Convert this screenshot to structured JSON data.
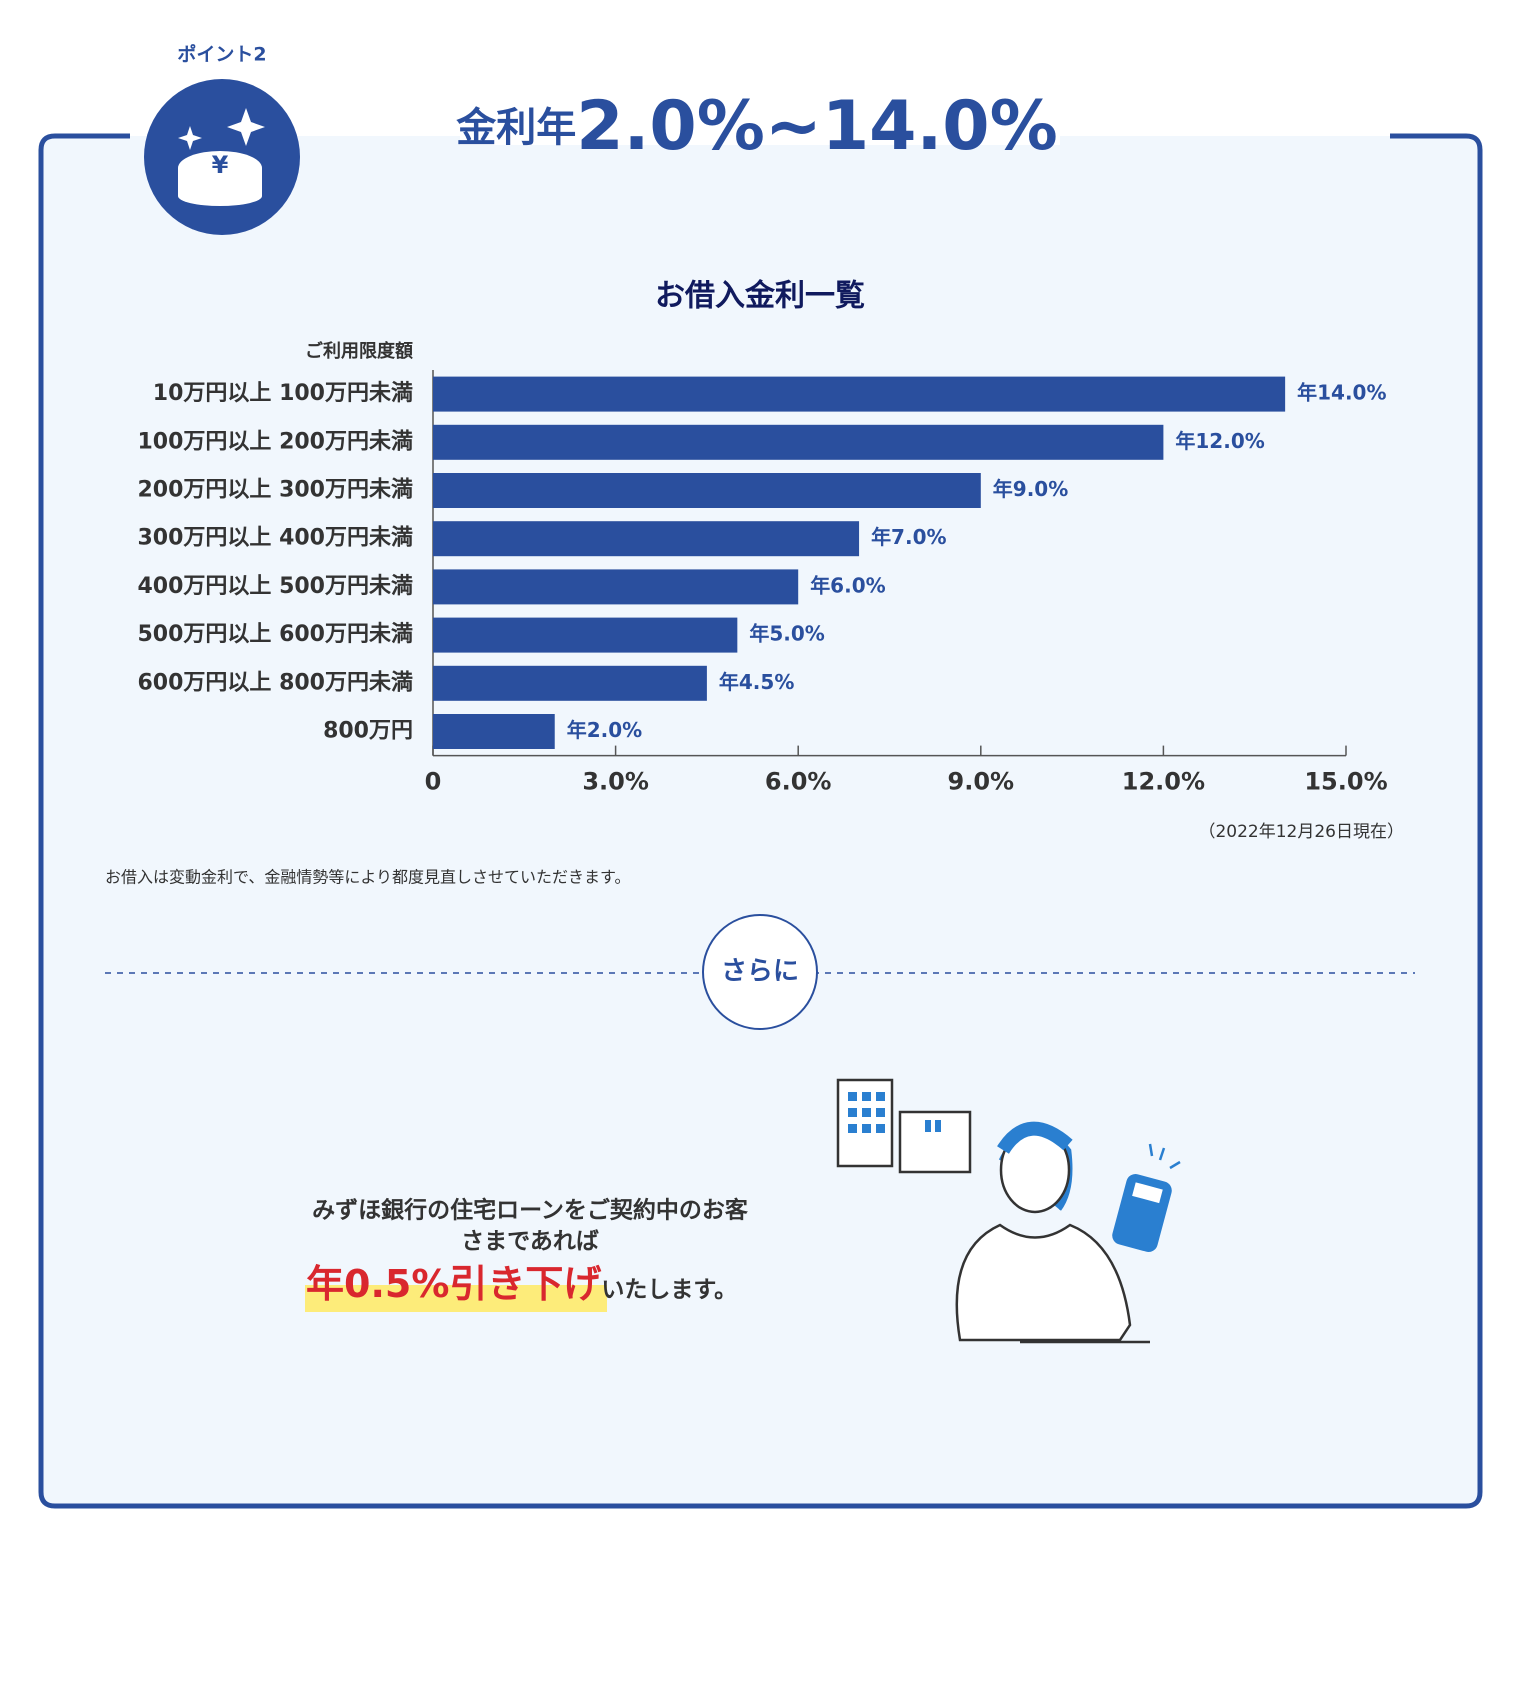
{
  "badge": "ポイント2",
  "headline": {
    "prefix": "金利年",
    "main": "2.0%~14.0%"
  },
  "chart_data": {
    "type": "bar",
    "orientation": "horizontal",
    "title": "お借入金利一覧",
    "y_label": "ご利用限度額",
    "categories": [
      "10万円以上 100万円未満",
      "100万円以上 200万円未満",
      "200万円以上 300万円未満",
      "300万円以上 400万円未満",
      "400万円以上 500万円未満",
      "500万円以上 600万円未満",
      "600万円以上 800万円未満",
      "800万円"
    ],
    "values": [
      14,
      12,
      9,
      7,
      6,
      5,
      4.5,
      2
    ],
    "value_labels": [
      "年14.0%",
      "年12.0%",
      "年9.0%",
      "年7.0%",
      "年6.0%",
      "年5.0%",
      "年4.5%",
      "年2.0%"
    ],
    "color": "#2a4f9e",
    "xlim": [
      0,
      15
    ],
    "xticks": [
      0,
      {
        "value": 3,
        "label": "3.0%"
      },
      {
        "value": 6,
        "label": "6.0%"
      },
      {
        "value": 9,
        "label": "9.0%"
      },
      {
        "value": 12,
        "label": "12.0%"
      },
      {
        "value": 15,
        "label": "15.0%"
      }
    ],
    "note": "（2022年12月26日現在）"
  },
  "disclaimer": "お借入は変動金利で、金融情勢等により都度見直しさせていただきます。",
  "divider": "さらに",
  "offer": {
    "line1": "みずほ銀行の住宅ローンをご契約中のお客",
    "line2": "さまであれば",
    "highlight": "年0.5%引き下げ",
    "tail": "いたします。"
  }
}
